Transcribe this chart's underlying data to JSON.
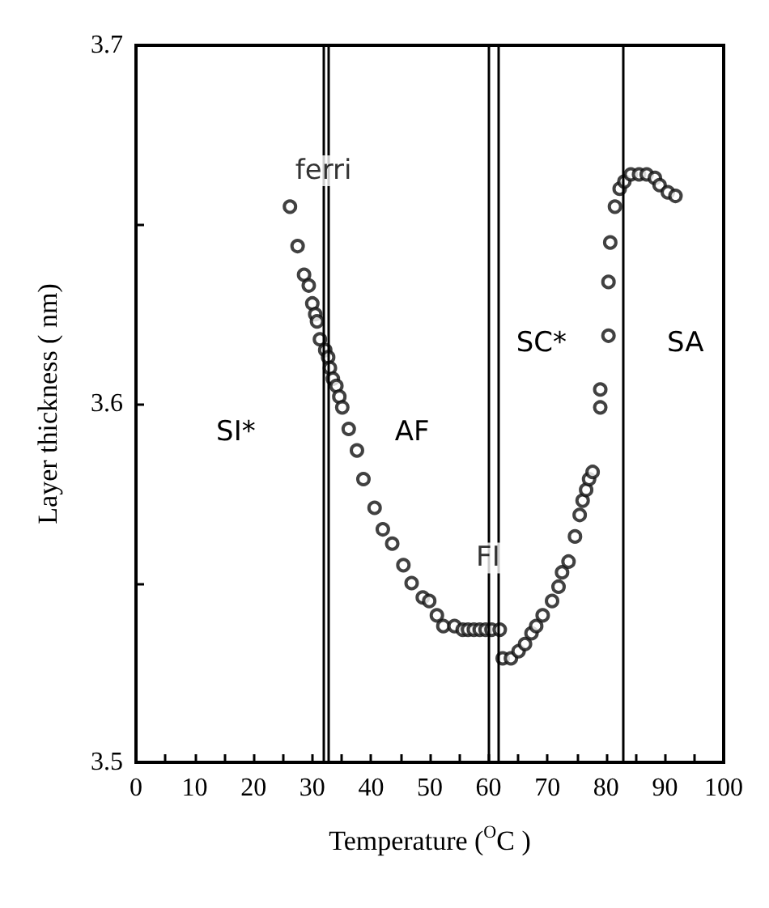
{
  "chart_data": {
    "type": "scatter",
    "xlabel": "Temperature ($^{O}$C )",
    "ylabel": "Layer thickness ( nm)",
    "xlim": [
      0,
      100
    ],
    "ylim": [
      3.5,
      3.7
    ],
    "xticks": [
      0,
      {
        "value": 5,
        "label": null
      },
      10,
      {
        "value": 15,
        "label": null
      },
      20,
      {
        "value": 25,
        "label": null
      },
      30,
      {
        "value": 35,
        "label": null
      },
      40,
      {
        "value": 45,
        "label": null
      },
      50,
      {
        "value": 55,
        "label": null
      },
      60,
      {
        "value": 65,
        "label": null
      },
      70,
      {
        "value": 75,
        "label": null
      },
      80,
      {
        "value": 85,
        "label": null
      },
      90,
      {
        "value": 95,
        "label": null
      },
      100
    ],
    "yticks": [
      3.5,
      {
        "value": 3.55,
        "label": null
      },
      3.6,
      {
        "value": 3.65,
        "label": null
      },
      3.7
    ],
    "marker": "circle",
    "series": [
      {
        "color": "#111111",
        "x": [
          26.2,
          27.5,
          28.6,
          29.4,
          30.0,
          30.5,
          30.8,
          31.3,
          32.2,
          32.7,
          33.0,
          33.5,
          34.1,
          34.6,
          35.1,
          36.2,
          37.6,
          38.7,
          40.6,
          42.0,
          43.6,
          45.5,
          46.9,
          48.8,
          49.9,
          51.2,
          52.3,
          54.2,
          55.6,
          56.5,
          57.5,
          58.5,
          59.5,
          60.5,
          61.9,
          62.4,
          63.8,
          65.1,
          66.2,
          67.3,
          68.1,
          69.2,
          70.8,
          71.9,
          72.5,
          73.6,
          74.7,
          75.5,
          76.0,
          76.6,
          77.1,
          77.7,
          79.0,
          79.0,
          80.4,
          80.4,
          80.7,
          81.5,
          82.3,
          83.1,
          84.2,
          85.6,
          86.9,
          88.3,
          89.1,
          90.5,
          91.8
        ],
        "values": [
          3.655,
          3.644,
          3.636,
          3.633,
          3.628,
          3.625,
          3.623,
          3.618,
          3.615,
          3.613,
          3.61,
          3.607,
          3.605,
          3.602,
          3.599,
          3.593,
          3.587,
          3.579,
          3.571,
          3.565,
          3.561,
          3.555,
          3.55,
          3.546,
          3.545,
          3.541,
          3.538,
          3.538,
          3.537,
          3.537,
          3.537,
          3.537,
          3.537,
          3.537,
          3.537,
          3.529,
          3.529,
          3.531,
          3.533,
          3.536,
          3.538,
          3.541,
          3.545,
          3.549,
          3.553,
          3.556,
          3.563,
          3.569,
          3.573,
          3.576,
          3.579,
          3.581,
          3.599,
          3.604,
          3.619,
          3.634,
          3.645,
          3.655,
          3.66,
          3.662,
          3.664,
          3.664,
          3.664,
          3.663,
          3.661,
          3.659,
          3.658
        ]
      }
    ],
    "ref_lines": [
      {
        "axis": "x",
        "value": 31.9
      },
      {
        "axis": "x",
        "value": 32.7
      },
      {
        "axis": "x",
        "value": 59.9
      },
      {
        "axis": "x",
        "value": 61.6
      },
      {
        "axis": "x",
        "value": 82.8
      }
    ],
    "annotations": [
      {
        "text": "ferri",
        "x": 31.9,
        "y": 3.665
      },
      "SI*",
      "AF",
      {
        "text": "FI",
        "x": 59.9,
        "y": 3.557
      },
      "SC*",
      "SA"
    ]
  }
}
